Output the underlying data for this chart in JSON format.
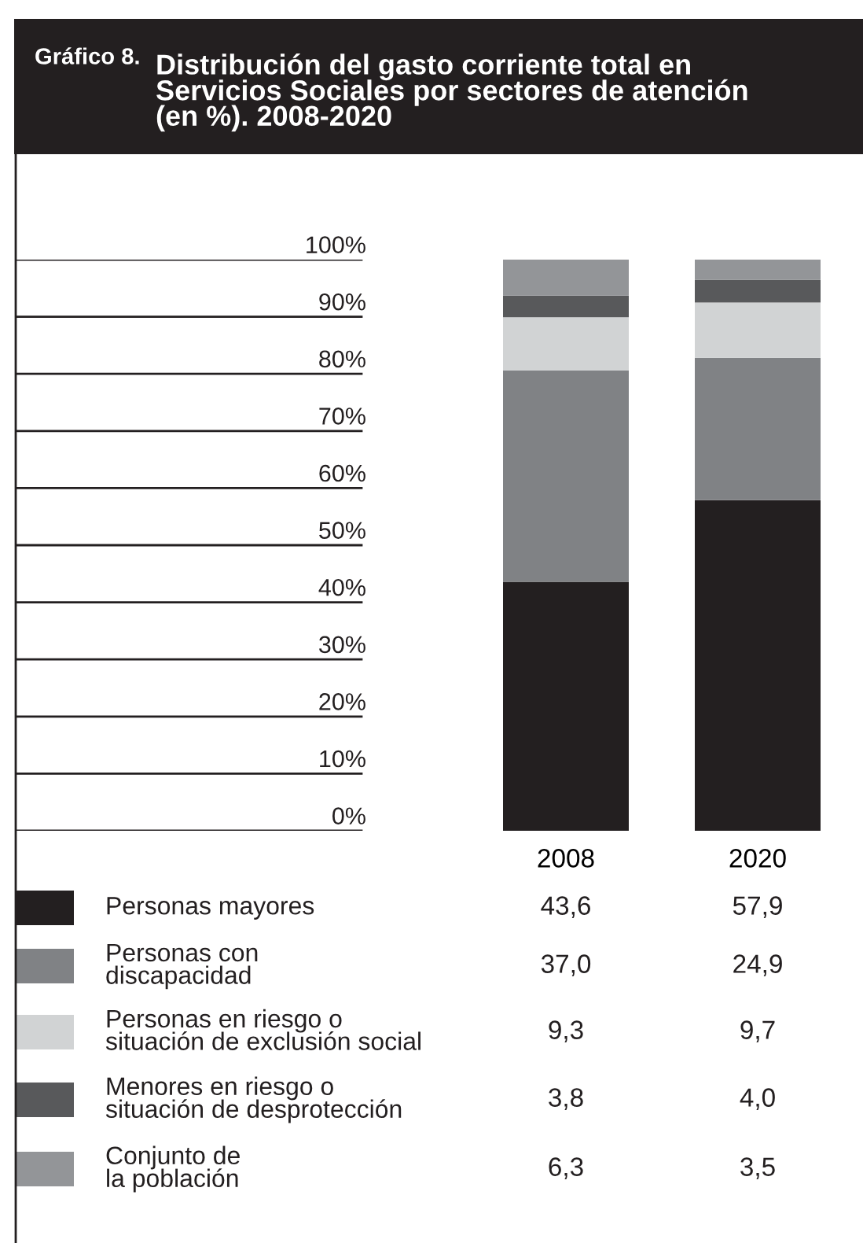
{
  "chart_data": {
    "type": "bar",
    "stacked": true,
    "title": "Distribución del gasto corriente total en\nServicios Sociales por sectores de atención\n(en %). 2008-2020",
    "annotations": [
      "Gráfico 8."
    ],
    "categories": [
      "2008",
      "2020"
    ],
    "series": [
      {
        "name": "Personas mayores",
        "color": "#231f20",
        "values": [
          43.6,
          57.9
        ],
        "value_labels": [
          "43,6",
          "57,9"
        ]
      },
      {
        "name": "Personas con\ndiscapacidad",
        "color": "#808285",
        "values": [
          37.0,
          24.9
        ],
        "value_labels": [
          "37,0",
          "24,9"
        ]
      },
      {
        "name": "Personas en riesgo o\nsituación de exclusión social",
        "color": "#d1d3d4",
        "values": [
          9.3,
          9.7
        ],
        "value_labels": [
          "9,3",
          "9,7"
        ]
      },
      {
        "name": "Menores en riesgo o\nsituación de desprotección",
        "color": "#58595b",
        "values": [
          3.8,
          4.0
        ],
        "value_labels": [
          "3,8",
          "4,0"
        ]
      },
      {
        "name": "Conjunto de\nla población",
        "color": "#939598",
        "values": [
          6.3,
          3.5
        ],
        "value_labels": [
          "6,3",
          "3,5"
        ]
      }
    ],
    "ylim": [
      0,
      100
    ],
    "yticks": [
      {
        "value": 0,
        "label": "0%"
      },
      {
        "value": 10,
        "label": "10%"
      },
      {
        "value": 20,
        "label": "20%"
      },
      {
        "value": 30,
        "label": "30%"
      },
      {
        "value": 40,
        "label": "40%"
      },
      {
        "value": 50,
        "label": "50%"
      },
      {
        "value": 60,
        "label": "60%"
      },
      {
        "value": 70,
        "label": "70%"
      },
      {
        "value": 80,
        "label": "80%"
      },
      {
        "value": 90,
        "label": "90%"
      },
      {
        "value": 100,
        "label": "100%"
      }
    ],
    "grid": "y",
    "legend": "bottom"
  }
}
